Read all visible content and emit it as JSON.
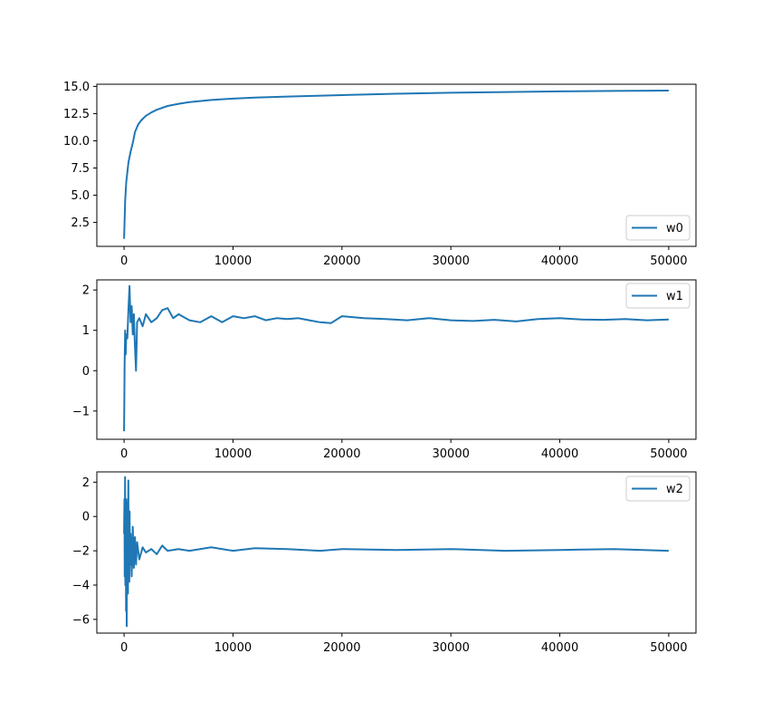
{
  "colors": {
    "series": "#1f77b4",
    "axes": "#000000",
    "legend_border": "#cccccc"
  },
  "chart_data": [
    {
      "type": "line",
      "title": "",
      "xlabel": "",
      "ylabel": "",
      "xlim": [
        -2500,
        52500
      ],
      "ylim": [
        0.3,
        15.2
      ],
      "xticks": [
        0,
        10000,
        20000,
        30000,
        40000,
        50000
      ],
      "yticks": [
        2.5,
        5.0,
        7.5,
        10.0,
        12.5,
        15.0
      ],
      "ytick_labels": [
        "2.5",
        "5.0",
        "7.5",
        "10.0",
        "12.5",
        "15.0"
      ],
      "legend": "lower right",
      "grid": false,
      "series": [
        {
          "name": "w0",
          "x": [
            0,
            100,
            200,
            400,
            600,
            800,
            1000,
            1300,
            1600,
            2000,
            2500,
            3000,
            4000,
            5000,
            6000,
            8000,
            10000,
            12000,
            15000,
            20000,
            25000,
            30000,
            35000,
            40000,
            45000,
            50000
          ],
          "y": [
            1.0,
            4.5,
            6.2,
            8.0,
            9.0,
            9.8,
            10.8,
            11.5,
            11.9,
            12.3,
            12.6,
            12.85,
            13.2,
            13.4,
            13.55,
            13.75,
            13.88,
            13.97,
            14.07,
            14.2,
            14.33,
            14.42,
            14.48,
            14.54,
            14.58,
            14.62
          ]
        }
      ]
    },
    {
      "type": "line",
      "title": "",
      "xlabel": "",
      "ylabel": "",
      "xlim": [
        -2500,
        52500
      ],
      "ylim": [
        -1.7,
        2.25
      ],
      "xticks": [
        0,
        10000,
        20000,
        30000,
        40000,
        50000
      ],
      "yticks": [
        -1,
        0,
        1,
        2
      ],
      "ytick_labels": [
        "−1",
        "0",
        "1",
        "2"
      ],
      "legend": "upper right",
      "grid": false,
      "series": [
        {
          "name": "w1",
          "x": [
            0,
            50,
            100,
            150,
            200,
            300,
            400,
            500,
            600,
            700,
            800,
            900,
            1000,
            1100,
            1200,
            1400,
            1700,
            2000,
            2500,
            3000,
            3500,
            4000,
            4500,
            5000,
            6000,
            7000,
            8000,
            9000,
            10000,
            11000,
            12000,
            13000,
            14000,
            15000,
            16000,
            17000,
            18000,
            19000,
            20000,
            22000,
            24000,
            26000,
            28000,
            30000,
            32000,
            34000,
            36000,
            38000,
            40000,
            42000,
            44000,
            46000,
            48000,
            50000
          ],
          "y": [
            -1.5,
            0.2,
            1.0,
            0.4,
            0.9,
            0.8,
            1.5,
            2.1,
            1.2,
            1.6,
            0.9,
            1.4,
            0.6,
            0.0,
            1.2,
            1.3,
            1.1,
            1.4,
            1.2,
            1.3,
            1.5,
            1.55,
            1.3,
            1.4,
            1.25,
            1.2,
            1.35,
            1.2,
            1.35,
            1.3,
            1.35,
            1.25,
            1.3,
            1.28,
            1.3,
            1.25,
            1.2,
            1.18,
            1.35,
            1.3,
            1.28,
            1.25,
            1.3,
            1.25,
            1.23,
            1.26,
            1.22,
            1.28,
            1.3,
            1.27,
            1.26,
            1.28,
            1.25,
            1.27
          ]
        }
      ]
    },
    {
      "type": "line",
      "title": "",
      "xlabel": "",
      "ylabel": "",
      "xlim": [
        -2500,
        52500
      ],
      "ylim": [
        -6.8,
        2.6
      ],
      "xticks": [
        0,
        10000,
        20000,
        30000,
        40000,
        50000
      ],
      "yticks": [
        -6,
        -4,
        -2,
        0,
        2
      ],
      "ytick_labels": [
        "−6",
        "−4",
        "−2",
        "0",
        "2"
      ],
      "legend": "upper right",
      "grid": false,
      "series": [
        {
          "name": "w2",
          "x": [
            0,
            30,
            60,
            90,
            120,
            150,
            180,
            210,
            240,
            270,
            300,
            330,
            360,
            390,
            420,
            450,
            480,
            510,
            540,
            600,
            700,
            800,
            900,
            1000,
            1100,
            1200,
            1400,
            1700,
            2000,
            2500,
            3000,
            3500,
            4000,
            5000,
            6000,
            8000,
            10000,
            12000,
            15000,
            18000,
            20000,
            25000,
            30000,
            35000,
            40000,
            45000,
            50000
          ],
          "y": [
            -1.0,
            1.0,
            -3.5,
            2.3,
            -4.0,
            0.5,
            -5.5,
            1.0,
            -6.4,
            -0.5,
            -3.0,
            0.8,
            -4.5,
            2.1,
            -2.5,
            -0.8,
            -3.8,
            0.3,
            -2.8,
            -1.0,
            -3.5,
            -0.6,
            -3.0,
            -1.2,
            -2.8,
            -1.5,
            -2.5,
            -1.8,
            -2.1,
            -1.9,
            -2.2,
            -1.7,
            -2.0,
            -1.9,
            -2.0,
            -1.8,
            -2.0,
            -1.85,
            -1.9,
            -2.0,
            -1.9,
            -1.95,
            -1.9,
            -2.0,
            -1.95,
            -1.9,
            -2.0
          ]
        }
      ]
    }
  ]
}
